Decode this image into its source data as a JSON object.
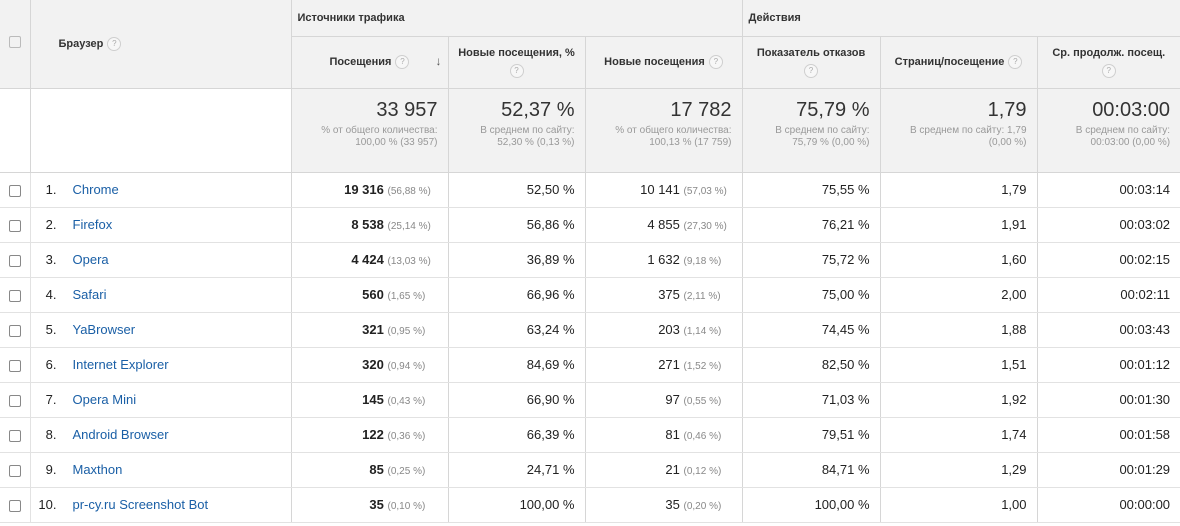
{
  "header": {
    "group_traffic": "Источники трафика",
    "group_actions": "Действия",
    "browser_label": "Браузер",
    "help_glyph": "?",
    "sort_glyph": "↓",
    "columns": {
      "visits": "Посещения",
      "new_visits_pct": "Новые посещения, %",
      "new_visits": "Новые посещения",
      "bounce": "Показатель отказов",
      "pages_per_visit": "Страниц/посещение",
      "avg_duration": "Ср. продолж. посещ."
    }
  },
  "totals": {
    "visits": {
      "value": "33 957",
      "sub1": "% от общего количества:",
      "sub2": "100,00 % (33 957)"
    },
    "new_visits_pct": {
      "value": "52,37 %",
      "sub1": "В среднем по сайту:",
      "sub2": "52,30 % (0,13 %)"
    },
    "new_visits": {
      "value": "17 782",
      "sub1": "% от общего количества:",
      "sub2": "100,13 % (17 759)"
    },
    "bounce": {
      "value": "75,79 %",
      "sub1": "В среднем по сайту:",
      "sub2": "75,79 % (0,00 %)"
    },
    "pages_per_visit": {
      "value": "1,79",
      "sub1": "В среднем по сайту: 1,79",
      "sub2": "(0,00 %)"
    },
    "avg_duration": {
      "value": "00:03:00",
      "sub1": "В среднем по сайту:",
      "sub2": "00:03:00 (0,00 %)"
    }
  },
  "rows": [
    {
      "idx": "1.",
      "browser": "Chrome",
      "visits": "19 316",
      "visits_pct": "(56,88 %)",
      "new_pct": "52,50 %",
      "new_visits": "10 141",
      "new_visits_pct": "(57,03 %)",
      "bounce": "75,55 %",
      "ppv": "1,79",
      "dur": "00:03:14"
    },
    {
      "idx": "2.",
      "browser": "Firefox",
      "visits": "8 538",
      "visits_pct": "(25,14 %)",
      "new_pct": "56,86 %",
      "new_visits": "4 855",
      "new_visits_pct": "(27,30 %)",
      "bounce": "76,21 %",
      "ppv": "1,91",
      "dur": "00:03:02"
    },
    {
      "idx": "3.",
      "browser": "Opera",
      "visits": "4 424",
      "visits_pct": "(13,03 %)",
      "new_pct": "36,89 %",
      "new_visits": "1 632",
      "new_visits_pct": "(9,18 %)",
      "bounce": "75,72 %",
      "ppv": "1,60",
      "dur": "00:02:15"
    },
    {
      "idx": "4.",
      "browser": "Safari",
      "visits": "560",
      "visits_pct": "(1,65 %)",
      "new_pct": "66,96 %",
      "new_visits": "375",
      "new_visits_pct": "(2,11 %)",
      "bounce": "75,00 %",
      "ppv": "2,00",
      "dur": "00:02:11"
    },
    {
      "idx": "5.",
      "browser": "YaBrowser",
      "visits": "321",
      "visits_pct": "(0,95 %)",
      "new_pct": "63,24 %",
      "new_visits": "203",
      "new_visits_pct": "(1,14 %)",
      "bounce": "74,45 %",
      "ppv": "1,88",
      "dur": "00:03:43"
    },
    {
      "idx": "6.",
      "browser": "Internet Explorer",
      "visits": "320",
      "visits_pct": "(0,94 %)",
      "new_pct": "84,69 %",
      "new_visits": "271",
      "new_visits_pct": "(1,52 %)",
      "bounce": "82,50 %",
      "ppv": "1,51",
      "dur": "00:01:12"
    },
    {
      "idx": "7.",
      "browser": "Opera Mini",
      "visits": "145",
      "visits_pct": "(0,43 %)",
      "new_pct": "66,90 %",
      "new_visits": "97",
      "new_visits_pct": "(0,55 %)",
      "bounce": "71,03 %",
      "ppv": "1,92",
      "dur": "00:01:30"
    },
    {
      "idx": "8.",
      "browser": "Android Browser",
      "visits": "122",
      "visits_pct": "(0,36 %)",
      "new_pct": "66,39 %",
      "new_visits": "81",
      "new_visits_pct": "(0,46 %)",
      "bounce": "79,51 %",
      "ppv": "1,74",
      "dur": "00:01:58"
    },
    {
      "idx": "9.",
      "browser": "Maxthon",
      "visits": "85",
      "visits_pct": "(0,25 %)",
      "new_pct": "24,71 %",
      "new_visits": "21",
      "new_visits_pct": "(0,12 %)",
      "bounce": "84,71 %",
      "ppv": "1,29",
      "dur": "00:01:29"
    },
    {
      "idx": "10.",
      "browser": "pr-cy.ru Screenshot Bot",
      "visits": "35",
      "visits_pct": "(0,10 %)",
      "new_pct": "100,00 %",
      "new_visits": "35",
      "new_visits_pct": "(0,20 %)",
      "bounce": "100,00 %",
      "ppv": "1,00",
      "dur": "00:00:00"
    }
  ],
  "colors": {
    "link": "#1a5fa6",
    "header_bg": "#f2f2f2",
    "border": "#d6d6d6"
  }
}
